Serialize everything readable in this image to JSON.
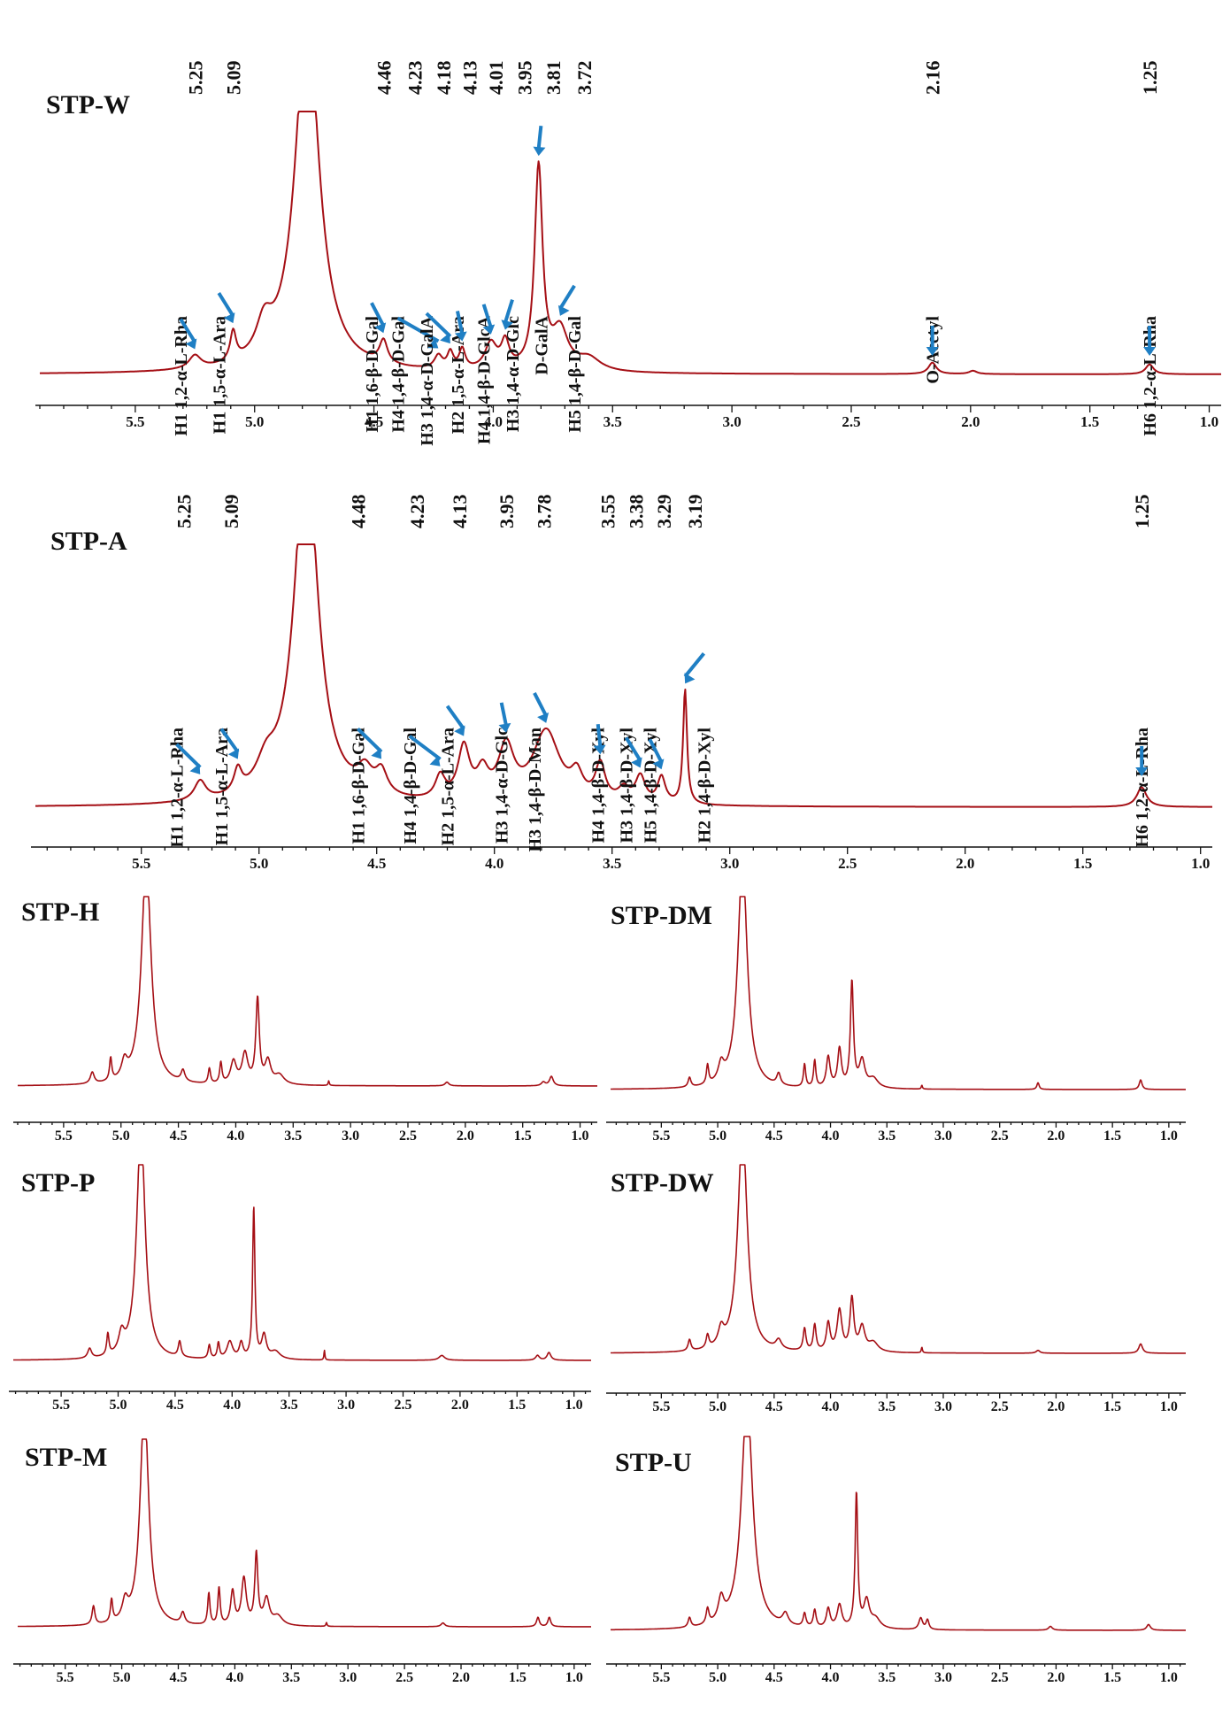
{
  "chart_data": [
    {
      "id": "stp-w",
      "type": "line",
      "title": "STP-W",
      "xlabel": "",
      "ylabel": "",
      "xlim": [
        5.9,
        0.95
      ],
      "ylim": [
        0,
        1
      ],
      "x_reversed": true,
      "ticks": [
        5.5,
        5.0,
        4.5,
        4.0,
        3.5,
        3.0,
        2.5,
        2.0,
        1.5,
        1.0
      ],
      "tick_labels": [
        "5.5",
        "5.0",
        "4.5",
        "4.0",
        "3.5",
        "3.0",
        "2.5",
        "2.0",
        "1.5",
        "1.0"
      ],
      "baseline": 0.03,
      "peaks": [
        {
          "x": 5.25,
          "h": 0.04,
          "w": 0.03
        },
        {
          "x": 5.09,
          "h": 0.09,
          "w": 0.015
        },
        {
          "x": 4.96,
          "h": 0.1,
          "w": 0.04
        },
        {
          "x": 4.78,
          "h": 1.1,
          "w": 0.06
        },
        {
          "x": 4.46,
          "h": 0.07,
          "w": 0.02
        },
        {
          "x": 4.23,
          "h": 0.04,
          "w": 0.02
        },
        {
          "x": 4.18,
          "h": 0.05,
          "w": 0.015
        },
        {
          "x": 4.13,
          "h": 0.06,
          "w": 0.015
        },
        {
          "x": 4.01,
          "h": 0.08,
          "w": 0.03
        },
        {
          "x": 3.95,
          "h": 0.08,
          "w": 0.02
        },
        {
          "x": 3.81,
          "h": 0.62,
          "w": 0.02
        },
        {
          "x": 3.72,
          "h": 0.12,
          "w": 0.04
        },
        {
          "x": 3.6,
          "h": 0.04,
          "w": 0.06
        },
        {
          "x": 2.16,
          "h": 0.035,
          "w": 0.02
        },
        {
          "x": 1.99,
          "h": 0.01,
          "w": 0.02
        },
        {
          "x": 1.25,
          "h": 0.03,
          "w": 0.02
        }
      ],
      "peak_labels": [
        {
          "text": "5.25",
          "x": 5.25
        },
        {
          "text": "5.09",
          "x": 5.09
        },
        {
          "text": "4.46",
          "x": 4.46
        },
        {
          "text": "4.23",
          "x": 4.33
        },
        {
          "text": "4.18",
          "x": 4.21
        },
        {
          "text": "4.13",
          "x": 4.1
        },
        {
          "text": "4.01",
          "x": 3.99
        },
        {
          "text": "3.95",
          "x": 3.87
        },
        {
          "text": "3.81",
          "x": 3.75
        },
        {
          "text": "3.72",
          "x": 3.62
        },
        {
          "text": "2.16",
          "x": 2.16
        },
        {
          "text": "1.25",
          "x": 1.25
        }
      ],
      "annotations": [
        {
          "text": "H1 1,2-α-L-Rha",
          "x": 5.31,
          "arrow_x": 5.25
        },
        {
          "text": "H1 1,5-α-L-Ara",
          "x": 5.15,
          "arrow_x": 5.09
        },
        {
          "text": "H1 1,6-β-D-Gal",
          "x": 4.51,
          "arrow_x": 4.46
        },
        {
          "text": "H4 1,4-β-D-Gal",
          "x": 4.4,
          "arrow_x": 4.23
        },
        {
          "text": "H3 1,4-α-D-GalA",
          "x": 4.28,
          "arrow_x": 4.18
        },
        {
          "text": "H2 1,5-α-L-Ara",
          "x": 4.15,
          "arrow_x": 4.13
        },
        {
          "text": "H4 1,4-β-D-GlcA",
          "x": 4.04,
          "arrow_x": 4.01
        },
        {
          "text": "H3 1,4-α-D-Glc",
          "x": 3.92,
          "arrow_x": 3.95
        },
        {
          "text": "D-GalA",
          "x": 3.8,
          "arrow_x": 3.81
        },
        {
          "text": "H5 1,4-β-D-Gal",
          "x": 3.66,
          "arrow_x": 3.72
        },
        {
          "text": "O-Acetyl",
          "x": 2.16,
          "arrow_x": 2.16
        },
        {
          "text": "H6 1,2-α-L-Rha",
          "x": 1.25,
          "arrow_x": 1.25
        }
      ]
    },
    {
      "id": "stp-a",
      "type": "line",
      "title": "STP-A",
      "xlabel": "",
      "ylabel": "",
      "xlim": [
        5.95,
        0.95
      ],
      "ylim": [
        0,
        1
      ],
      "x_reversed": true,
      "ticks": [
        5.5,
        5.0,
        4.5,
        4.0,
        3.5,
        3.0,
        2.5,
        2.0,
        1.5,
        1.0
      ],
      "tick_labels": [
        "5.5",
        "5.0",
        "4.5",
        "4.0",
        "3.5",
        "3.0",
        "2.5",
        "2.0",
        "1.5",
        "1.0"
      ],
      "baseline": 0.03,
      "peaks": [
        {
          "x": 5.25,
          "h": 0.06,
          "w": 0.03
        },
        {
          "x": 5.09,
          "h": 0.07,
          "w": 0.02
        },
        {
          "x": 4.97,
          "h": 0.08,
          "w": 0.05
        },
        {
          "x": 4.8,
          "h": 1.1,
          "w": 0.06
        },
        {
          "x": 4.55,
          "h": 0.07,
          "w": 0.04
        },
        {
          "x": 4.48,
          "h": 0.07,
          "w": 0.03
        },
        {
          "x": 4.23,
          "h": 0.07,
          "w": 0.025
        },
        {
          "x": 4.13,
          "h": 0.16,
          "w": 0.03
        },
        {
          "x": 4.05,
          "h": 0.08,
          "w": 0.03
        },
        {
          "x": 3.95,
          "h": 0.16,
          "w": 0.04
        },
        {
          "x": 3.78,
          "h": 0.22,
          "w": 0.07
        },
        {
          "x": 3.65,
          "h": 0.07,
          "w": 0.03
        },
        {
          "x": 3.55,
          "h": 0.11,
          "w": 0.025
        },
        {
          "x": 3.45,
          "h": 0.04,
          "w": 0.03
        },
        {
          "x": 3.38,
          "h": 0.08,
          "w": 0.025
        },
        {
          "x": 3.29,
          "h": 0.08,
          "w": 0.02
        },
        {
          "x": 3.19,
          "h": 0.35,
          "w": 0.01
        },
        {
          "x": 1.25,
          "h": 0.06,
          "w": 0.025
        }
      ],
      "peak_labels": [
        {
          "text": "5.25",
          "x": 5.32
        },
        {
          "text": "5.09",
          "x": 5.12
        },
        {
          "text": "4.48",
          "x": 4.58
        },
        {
          "text": "4.23",
          "x": 4.33
        },
        {
          "text": "4.13",
          "x": 4.15
        },
        {
          "text": "3.95",
          "x": 3.95
        },
        {
          "text": "3.78",
          "x": 3.79
        },
        {
          "text": "3.55",
          "x": 3.52
        },
        {
          "text": "3.38",
          "x": 3.4
        },
        {
          "text": "3.29",
          "x": 3.28
        },
        {
          "text": "3.19",
          "x": 3.15
        },
        {
          "text": "1.25",
          "x": 1.25
        }
      ],
      "annotations": [
        {
          "text": "H1 1,2-α-L-Rha",
          "x": 5.35,
          "arrow_x": 5.25
        },
        {
          "text": "H1 1,5-α-L-Ara",
          "x": 5.16,
          "arrow_x": 5.09
        },
        {
          "text": "H1 1,6-β-D-Gal",
          "x": 4.58,
          "arrow_x": 4.48
        },
        {
          "text": "H4 1,4-β-D-Gal",
          "x": 4.36,
          "arrow_x": 4.23
        },
        {
          "text": "H2 1,5-α-L-Ara",
          "x": 4.2,
          "arrow_x": 4.13
        },
        {
          "text": "H3 1,4-α-D-Glc",
          "x": 3.97,
          "arrow_x": 3.95
        },
        {
          "text": "H3 1,4-β-D-Man",
          "x": 3.83,
          "arrow_x": 3.78
        },
        {
          "text": "H4 1,4-β-D-Xyl",
          "x": 3.56,
          "arrow_x": 3.55
        },
        {
          "text": "H3 1,4-β-D-Xyl",
          "x": 3.44,
          "arrow_x": 3.38
        },
        {
          "text": "H5 1,4-β-D-Xyl",
          "x": 3.34,
          "arrow_x": 3.29
        },
        {
          "text": "H2 1,4-β-D-Xyl",
          "x": 3.11,
          "arrow_x": 3.19
        },
        {
          "text": "H6 1,2-α-L-Rha",
          "x": 1.25,
          "arrow_x": 1.25
        }
      ]
    },
    {
      "id": "stp-h",
      "type": "line",
      "title": "STP-H",
      "xlim": [
        5.9,
        0.85
      ],
      "ticks": [
        5.5,
        5.0,
        4.5,
        4.0,
        3.5,
        3.0,
        2.5,
        2.0,
        1.5,
        1.0
      ],
      "tick_labels": [
        "5.5",
        "5.0",
        "4.5",
        "4.0",
        "3.5",
        "3.0",
        "2.5",
        "2.0",
        "1.5",
        "1.0"
      ],
      "baseline": 0.03,
      "peaks": [
        {
          "x": 5.25,
          "h": 0.06,
          "w": 0.02
        },
        {
          "x": 5.09,
          "h": 0.12,
          "w": 0.012
        },
        {
          "x": 4.97,
          "h": 0.09,
          "w": 0.03
        },
        {
          "x": 4.78,
          "h": 1.2,
          "w": 0.05
        },
        {
          "x": 4.46,
          "h": 0.06,
          "w": 0.02
        },
        {
          "x": 4.23,
          "h": 0.08,
          "w": 0.012
        },
        {
          "x": 4.13,
          "h": 0.11,
          "w": 0.012
        },
        {
          "x": 4.02,
          "h": 0.12,
          "w": 0.03
        },
        {
          "x": 3.92,
          "h": 0.16,
          "w": 0.03
        },
        {
          "x": 3.81,
          "h": 0.45,
          "w": 0.018
        },
        {
          "x": 3.72,
          "h": 0.12,
          "w": 0.03
        },
        {
          "x": 3.62,
          "h": 0.05,
          "w": 0.05
        },
        {
          "x": 3.19,
          "h": 0.025,
          "w": 0.006
        },
        {
          "x": 2.16,
          "h": 0.02,
          "w": 0.02
        },
        {
          "x": 1.32,
          "h": 0.02,
          "w": 0.02
        },
        {
          "x": 1.25,
          "h": 0.05,
          "w": 0.02
        }
      ]
    },
    {
      "id": "stp-dm",
      "type": "line",
      "title": "STP-DM",
      "xlim": [
        5.95,
        0.85
      ],
      "ticks": [
        5.5,
        5.0,
        4.5,
        4.0,
        3.5,
        3.0,
        2.5,
        2.0,
        1.5,
        1.0
      ],
      "tick_labels": [
        "5.5",
        "5.0",
        "4.5",
        "4.0",
        "3.5",
        "3.0",
        "2.5",
        "2.0",
        "1.5",
        "1.0"
      ],
      "baseline": 0.03,
      "peaks": [
        {
          "x": 5.25,
          "h": 0.05,
          "w": 0.015
        },
        {
          "x": 5.09,
          "h": 0.1,
          "w": 0.012
        },
        {
          "x": 4.97,
          "h": 0.09,
          "w": 0.03
        },
        {
          "x": 4.78,
          "h": 1.2,
          "w": 0.05
        },
        {
          "x": 4.46,
          "h": 0.06,
          "w": 0.02
        },
        {
          "x": 4.23,
          "h": 0.12,
          "w": 0.012
        },
        {
          "x": 4.14,
          "h": 0.14,
          "w": 0.012
        },
        {
          "x": 4.02,
          "h": 0.16,
          "w": 0.02
        },
        {
          "x": 3.92,
          "h": 0.2,
          "w": 0.02
        },
        {
          "x": 3.81,
          "h": 0.55,
          "w": 0.016
        },
        {
          "x": 3.72,
          "h": 0.14,
          "w": 0.03
        },
        {
          "x": 3.62,
          "h": 0.05,
          "w": 0.05
        },
        {
          "x": 3.19,
          "h": 0.02,
          "w": 0.006
        },
        {
          "x": 2.16,
          "h": 0.035,
          "w": 0.012
        },
        {
          "x": 1.25,
          "h": 0.05,
          "w": 0.015
        }
      ]
    },
    {
      "id": "stp-p",
      "type": "line",
      "title": "STP-P",
      "xlim": [
        5.92,
        0.85
      ],
      "ticks": [
        5.5,
        5.0,
        4.5,
        4.0,
        3.5,
        3.0,
        2.5,
        2.0,
        1.5,
        1.0
      ],
      "tick_labels": [
        "5.5",
        "5.0",
        "4.5",
        "4.0",
        "3.5",
        "3.0",
        "2.5",
        "2.0",
        "1.5",
        "1.0"
      ],
      "baseline": 0.03,
      "peaks": [
        {
          "x": 5.25,
          "h": 0.05,
          "w": 0.02
        },
        {
          "x": 5.09,
          "h": 0.11,
          "w": 0.012
        },
        {
          "x": 4.97,
          "h": 0.1,
          "w": 0.03
        },
        {
          "x": 4.8,
          "h": 1.2,
          "w": 0.045
        },
        {
          "x": 4.46,
          "h": 0.08,
          "w": 0.015
        },
        {
          "x": 4.2,
          "h": 0.07,
          "w": 0.012
        },
        {
          "x": 4.12,
          "h": 0.08,
          "w": 0.012
        },
        {
          "x": 4.02,
          "h": 0.09,
          "w": 0.03
        },
        {
          "x": 3.92,
          "h": 0.08,
          "w": 0.02
        },
        {
          "x": 3.81,
          "h": 0.78,
          "w": 0.012
        },
        {
          "x": 3.72,
          "h": 0.12,
          "w": 0.025
        },
        {
          "x": 3.62,
          "h": 0.04,
          "w": 0.05
        },
        {
          "x": 3.19,
          "h": 0.05,
          "w": 0.005
        },
        {
          "x": 2.16,
          "h": 0.025,
          "w": 0.03
        },
        {
          "x": 1.32,
          "h": 0.025,
          "w": 0.02
        },
        {
          "x": 1.22,
          "h": 0.04,
          "w": 0.02
        }
      ]
    },
    {
      "id": "stp-dw",
      "type": "line",
      "title": "STP-DW",
      "xlim": [
        5.95,
        0.85
      ],
      "ticks": [
        5.5,
        5.0,
        4.5,
        4.0,
        3.5,
        3.0,
        2.5,
        2.0,
        1.5,
        1.0
      ],
      "tick_labels": [
        "5.5",
        "5.0",
        "4.5",
        "4.0",
        "3.5",
        "3.0",
        "2.5",
        "2.0",
        "1.5",
        "1.0"
      ],
      "baseline": 0.03,
      "peaks": [
        {
          "x": 5.25,
          "h": 0.06,
          "w": 0.015
        },
        {
          "x": 5.09,
          "h": 0.07,
          "w": 0.015
        },
        {
          "x": 4.97,
          "h": 0.09,
          "w": 0.03
        },
        {
          "x": 4.78,
          "h": 1.2,
          "w": 0.05
        },
        {
          "x": 4.46,
          "h": 0.05,
          "w": 0.03
        },
        {
          "x": 4.23,
          "h": 0.12,
          "w": 0.015
        },
        {
          "x": 4.14,
          "h": 0.14,
          "w": 0.015
        },
        {
          "x": 4.02,
          "h": 0.15,
          "w": 0.02
        },
        {
          "x": 3.92,
          "h": 0.22,
          "w": 0.025
        },
        {
          "x": 3.81,
          "h": 0.28,
          "w": 0.02
        },
        {
          "x": 3.72,
          "h": 0.13,
          "w": 0.03
        },
        {
          "x": 3.62,
          "h": 0.05,
          "w": 0.05
        },
        {
          "x": 3.19,
          "h": 0.03,
          "w": 0.006
        },
        {
          "x": 2.16,
          "h": 0.015,
          "w": 0.02
        },
        {
          "x": 1.25,
          "h": 0.05,
          "w": 0.02
        }
      ]
    },
    {
      "id": "stp-m",
      "type": "line",
      "title": "STP-M",
      "xlim": [
        5.92,
        0.85
      ],
      "ticks": [
        5.5,
        5.0,
        4.5,
        4.0,
        3.5,
        3.0,
        2.5,
        2.0,
        1.5,
        1.0
      ],
      "tick_labels": [
        "5.5",
        "5.0",
        "4.5",
        "4.0",
        "3.5",
        "3.0",
        "2.5",
        "2.0",
        "1.5",
        "1.0"
      ],
      "baseline": 0.03,
      "peaks": [
        {
          "x": 5.25,
          "h": 0.1,
          "w": 0.015
        },
        {
          "x": 5.09,
          "h": 0.12,
          "w": 0.012
        },
        {
          "x": 4.97,
          "h": 0.1,
          "w": 0.03
        },
        {
          "x": 4.8,
          "h": 1.2,
          "w": 0.045
        },
        {
          "x": 4.46,
          "h": 0.06,
          "w": 0.02
        },
        {
          "x": 4.23,
          "h": 0.17,
          "w": 0.012
        },
        {
          "x": 4.14,
          "h": 0.2,
          "w": 0.012
        },
        {
          "x": 4.02,
          "h": 0.18,
          "w": 0.02
        },
        {
          "x": 3.92,
          "h": 0.25,
          "w": 0.025
        },
        {
          "x": 3.81,
          "h": 0.38,
          "w": 0.016
        },
        {
          "x": 3.72,
          "h": 0.14,
          "w": 0.03
        },
        {
          "x": 3.62,
          "h": 0.05,
          "w": 0.05
        },
        {
          "x": 3.19,
          "h": 0.02,
          "w": 0.006
        },
        {
          "x": 2.16,
          "h": 0.02,
          "w": 0.02
        },
        {
          "x": 1.32,
          "h": 0.05,
          "w": 0.015
        },
        {
          "x": 1.22,
          "h": 0.05,
          "w": 0.015
        }
      ]
    },
    {
      "id": "stp-u",
      "type": "line",
      "title": "STP-U",
      "xlim": [
        5.95,
        0.85
      ],
      "ticks": [
        5.5,
        5.0,
        4.5,
        4.0,
        3.5,
        3.0,
        2.5,
        2.0,
        1.5,
        1.0
      ],
      "tick_labels": [
        "5.5",
        "5.0",
        "4.5",
        "4.0",
        "3.5",
        "3.0",
        "2.5",
        "2.0",
        "1.5",
        "1.0"
      ],
      "baseline": 0.03,
      "peaks": [
        {
          "x": 5.25,
          "h": 0.05,
          "w": 0.015
        },
        {
          "x": 5.09,
          "h": 0.08,
          "w": 0.015
        },
        {
          "x": 4.97,
          "h": 0.12,
          "w": 0.03
        },
        {
          "x": 4.74,
          "h": 1.2,
          "w": 0.06
        },
        {
          "x": 4.4,
          "h": 0.06,
          "w": 0.03
        },
        {
          "x": 4.23,
          "h": 0.07,
          "w": 0.015
        },
        {
          "x": 4.14,
          "h": 0.09,
          "w": 0.015
        },
        {
          "x": 4.02,
          "h": 0.1,
          "w": 0.02
        },
        {
          "x": 3.92,
          "h": 0.12,
          "w": 0.025
        },
        {
          "x": 3.77,
          "h": 0.7,
          "w": 0.014
        },
        {
          "x": 3.68,
          "h": 0.14,
          "w": 0.03
        },
        {
          "x": 3.6,
          "h": 0.05,
          "w": 0.05
        },
        {
          "x": 3.2,
          "h": 0.06,
          "w": 0.02
        },
        {
          "x": 3.14,
          "h": 0.05,
          "w": 0.015
        },
        {
          "x": 2.05,
          "h": 0.02,
          "w": 0.02
        },
        {
          "x": 1.18,
          "h": 0.03,
          "w": 0.02
        }
      ]
    }
  ]
}
